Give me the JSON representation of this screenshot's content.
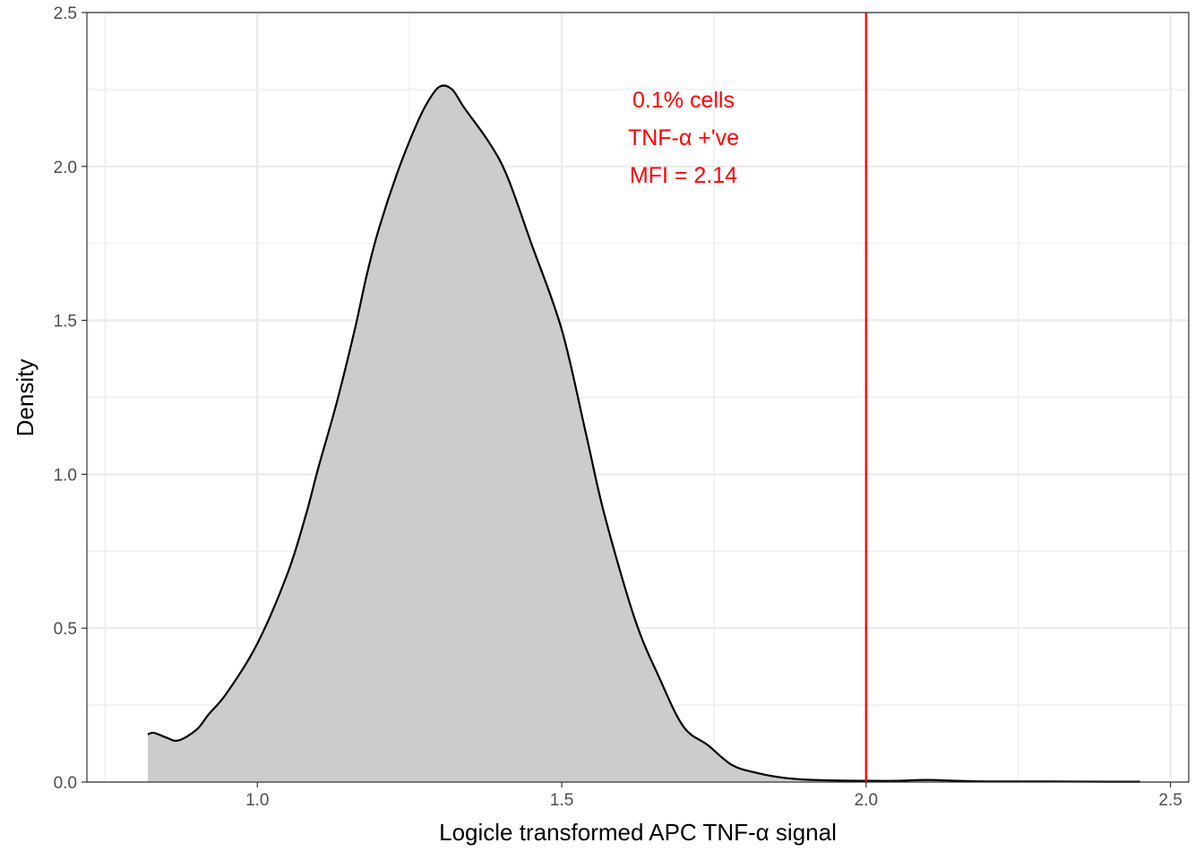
{
  "chart_data": {
    "type": "area",
    "xlabel": "Logicle transformed APC TNF-α signal",
    "ylabel": "Density",
    "xlim": [
      0.72,
      2.53
    ],
    "ylim": [
      0,
      2.5
    ],
    "x_ticks": [
      1.0,
      1.5,
      2.0,
      2.5
    ],
    "x_tick_labels": [
      "1.0",
      "1.5",
      "2.0",
      "2.5"
    ],
    "y_ticks": [
      0.0,
      0.5,
      1.0,
      1.5,
      2.0,
      2.5
    ],
    "y_tick_labels": [
      "0.0",
      "0.5",
      "1.0",
      "1.5",
      "2.0",
      "2.5"
    ],
    "grid": true,
    "fill_color": "#cccccc",
    "line_color": "#000000",
    "series": [
      {
        "x": [
          0.82,
          0.83,
          0.85,
          0.87,
          0.9,
          0.92,
          0.95,
          1.0,
          1.05,
          1.08,
          1.1,
          1.13,
          1.16,
          1.18,
          1.2,
          1.23,
          1.26,
          1.28,
          1.3,
          1.32,
          1.34,
          1.38,
          1.41,
          1.45,
          1.5,
          1.54,
          1.57,
          1.62,
          1.66,
          1.7,
          1.74,
          1.78,
          1.82,
          1.86,
          1.9,
          1.95,
          2.0,
          2.05,
          2.1,
          2.15,
          2.2,
          2.3,
          2.4,
          2.45
        ],
        "y": [
          0.155,
          0.16,
          0.145,
          0.135,
          0.17,
          0.22,
          0.29,
          0.45,
          0.68,
          0.87,
          1.02,
          1.23,
          1.47,
          1.65,
          1.8,
          1.98,
          2.13,
          2.21,
          2.26,
          2.25,
          2.19,
          2.08,
          1.97,
          1.75,
          1.47,
          1.13,
          0.87,
          0.53,
          0.34,
          0.18,
          0.12,
          0.055,
          0.03,
          0.015,
          0.008,
          0.005,
          0.004,
          0.004,
          0.007,
          0.004,
          0.002,
          0.002,
          0.001,
          0.001
        ]
      }
    ],
    "threshold": {
      "x": 2.0,
      "color": "#ff0000"
    },
    "annotation": {
      "lines": [
        "0.1% cells",
        "TNF-α +'ve",
        "MFI = 2.14"
      ],
      "color": "#ff0000"
    }
  }
}
